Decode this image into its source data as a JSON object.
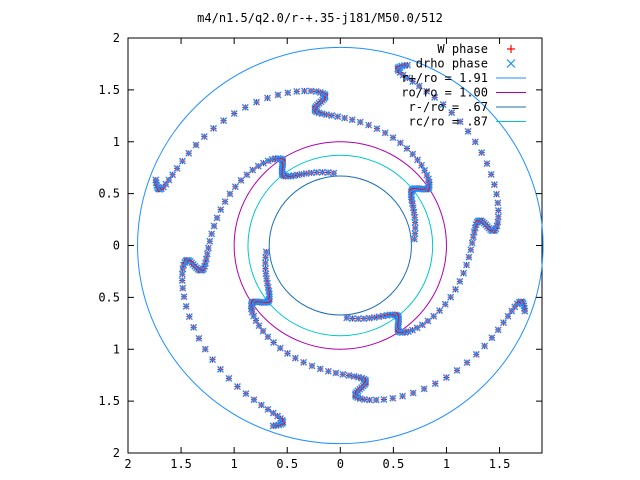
{
  "chart_data": {
    "type": "scatter",
    "title": "m4/n1.5/q2.0/r-+.35-j181/M50.0/512",
    "xlim": [
      -2,
      1.9
    ],
    "ylim": [
      -2,
      2
    ],
    "x_tick_values": [
      -2,
      -1.5,
      -1,
      -0.5,
      0,
      0.5,
      1,
      1.5
    ],
    "x_tick_labels": [
      "2",
      "1.5",
      "1",
      "0.5",
      "0",
      "0.5",
      "1",
      "1.5"
    ],
    "y_tick_values": [
      2,
      1.5,
      1,
      0.5,
      0,
      -0.5,
      -1,
      -1.5,
      -2
    ],
    "y_tick_labels": [
      "2",
      "1.5",
      "1",
      "0.5",
      "0",
      "0.5",
      "1",
      "1.5",
      "2"
    ],
    "legend_position": "top-right",
    "grid": false,
    "series": [
      {
        "name": "W phase",
        "marker": "+",
        "color": "#ff0000"
      },
      {
        "name": "drho phase",
        "marker": "x",
        "color": "#1e90ff"
      }
    ],
    "circles": [
      {
        "label": "r+/ro = 1.91",
        "radius": 1.91,
        "color": "#1e90ff"
      },
      {
        "label": "ro/ro = 1.00",
        "radius": 1.0,
        "color": "#b000b0"
      },
      {
        "label": "r-/ro = .67",
        "radius": 0.67,
        "color": "#1e6eb4"
      },
      {
        "label": "rc/ro = .87",
        "radius": 0.87,
        "color": "#00c8c8"
      }
    ],
    "spiral_arms": 4,
    "arm_radius_range": [
      0.7,
      1.85
    ],
    "arm_phase_offset_deg": [
      95,
      185,
      275,
      5
    ],
    "arm_twist_deg": 155
  }
}
